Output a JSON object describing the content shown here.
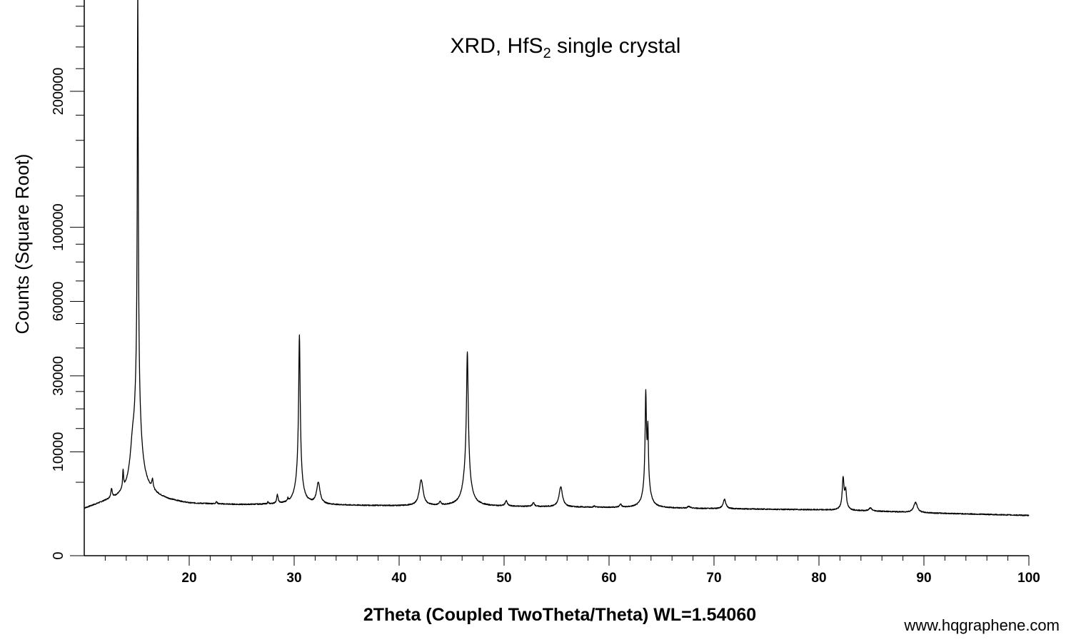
{
  "chart_data": {
    "type": "line",
    "title": "XRD, HfS",
    "title_subscript": "2",
    "title_suffix": " single crystal",
    "xlabel": "2Theta (Coupled TwoTheta/Theta) WL=1.54060",
    "ylabel": "Counts (Square Root)",
    "y_scale": "sqrt",
    "xlim": [
      10,
      100
    ],
    "ylim": [
      0,
      270000
    ],
    "grid": false,
    "x_ticks": [
      20,
      30,
      40,
      50,
      60,
      70,
      80,
      90,
      100
    ],
    "y_ticks": [
      0,
      10000,
      30000,
      60000,
      100000,
      200000
    ],
    "x_tick_labels": [
      "20",
      "30",
      "40",
      "50",
      "60",
      "70",
      "80",
      "90",
      "100"
    ],
    "y_tick_labels": [
      "0",
      "10000",
      "30000",
      "60000",
      "100000",
      "200000"
    ],
    "baseline": [
      [
        10,
        2000
      ],
      [
        12,
        2600
      ],
      [
        14,
        3000
      ],
      [
        16,
        3300
      ],
      [
        18,
        2800
      ],
      [
        20,
        2500
      ],
      [
        25,
        2400
      ],
      [
        30,
        2450
      ],
      [
        35,
        2350
      ],
      [
        40,
        2300
      ],
      [
        45,
        2300
      ],
      [
        50,
        2250
      ],
      [
        55,
        2200
      ],
      [
        60,
        2150
      ],
      [
        65,
        2100
      ],
      [
        70,
        2050
      ],
      [
        75,
        2000
      ],
      [
        80,
        1950
      ],
      [
        85,
        1850
      ],
      [
        90,
        1700
      ],
      [
        95,
        1600
      ],
      [
        100,
        1500
      ]
    ],
    "peaks": [
      {
        "x": 12.6,
        "y": 1100,
        "w": 0.08
      },
      {
        "x": 13.7,
        "y": 2600,
        "w": 0.05
      },
      {
        "x": 14.6,
        "y": 4500,
        "w": 0.22
      },
      {
        "x": 15.1,
        "y": 282000,
        "w": 0.04
      },
      {
        "x": 15.05,
        "y": 20000,
        "w": 0.3
      },
      {
        "x": 16.5,
        "y": 1300,
        "w": 0.08
      },
      {
        "x": 22.6,
        "y": 200,
        "w": 0.08
      },
      {
        "x": 27.5,
        "y": 200,
        "w": 0.05
      },
      {
        "x": 28.4,
        "y": 900,
        "w": 0.08
      },
      {
        "x": 29.4,
        "y": 300,
        "w": 0.05
      },
      {
        "x": 30.5,
        "y": 40000,
        "w": 0.07
      },
      {
        "x": 30.45,
        "y": 3000,
        "w": 0.3
      },
      {
        "x": 32.3,
        "y": 2500,
        "w": 0.18
      },
      {
        "x": 42.1,
        "y": 3000,
        "w": 0.2
      },
      {
        "x": 43.9,
        "y": 300,
        "w": 0.1
      },
      {
        "x": 46.5,
        "y": 32000,
        "w": 0.08
      },
      {
        "x": 46.45,
        "y": 4500,
        "w": 0.3
      },
      {
        "x": 50.2,
        "y": 500,
        "w": 0.12
      },
      {
        "x": 52.8,
        "y": 350,
        "w": 0.12
      },
      {
        "x": 55.4,
        "y": 2200,
        "w": 0.18
      },
      {
        "x": 58.6,
        "y": 100,
        "w": 0.1
      },
      {
        "x": 61.1,
        "y": 300,
        "w": 0.1
      },
      {
        "x": 63.5,
        "y": 20000,
        "w": 0.06
      },
      {
        "x": 63.7,
        "y": 10000,
        "w": 0.05
      },
      {
        "x": 63.6,
        "y": 3500,
        "w": 0.25
      },
      {
        "x": 67.6,
        "y": 150,
        "w": 0.15
      },
      {
        "x": 71.0,
        "y": 900,
        "w": 0.15
      },
      {
        "x": 82.3,
        "y": 3200,
        "w": 0.08
      },
      {
        "x": 82.55,
        "y": 1600,
        "w": 0.08
      },
      {
        "x": 82.4,
        "y": 800,
        "w": 0.2
      },
      {
        "x": 84.9,
        "y": 250,
        "w": 0.15
      },
      {
        "x": 89.2,
        "y": 900,
        "w": 0.2
      }
    ]
  },
  "watermark": "www.hqgraphene.com"
}
